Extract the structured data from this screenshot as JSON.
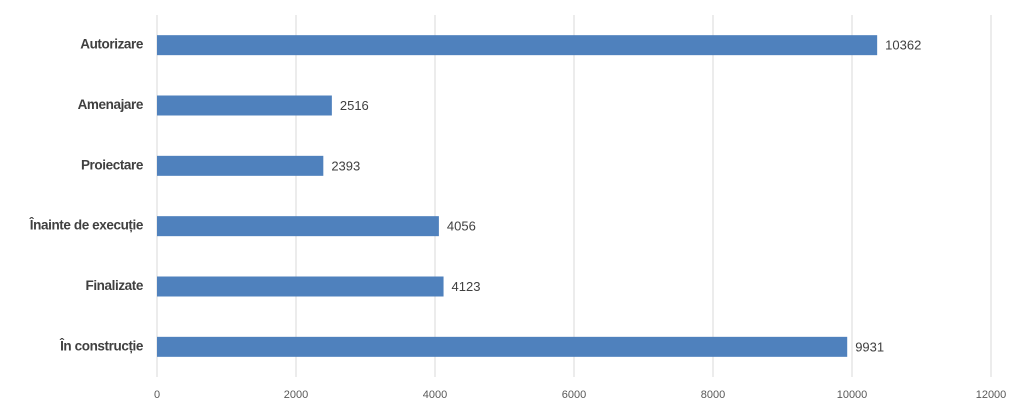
{
  "chart_data": {
    "type": "bar",
    "orientation": "horizontal",
    "categories": [
      "Autorizare",
      "Amenajare",
      "Proiectare",
      "Înainte de execuție",
      "Finalizate",
      "În construcție"
    ],
    "values": [
      10362,
      2516,
      2393,
      4056,
      4123,
      9931
    ],
    "color": "#4f81bd",
    "xlim": [
      0,
      12000
    ],
    "xticks": [
      0,
      2000,
      4000,
      6000,
      8000,
      10000,
      12000
    ],
    "grid": true
  }
}
